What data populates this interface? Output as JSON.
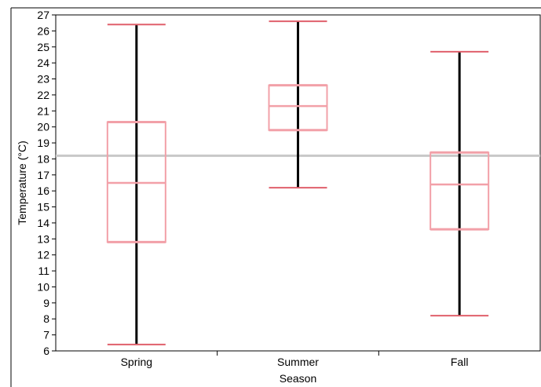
{
  "chart_data": {
    "type": "box",
    "xlabel": "Season",
    "ylabel": "Temperature (°C)",
    "ylim": [
      6,
      27
    ],
    "yticks": [
      6,
      7,
      8,
      9,
      10,
      11,
      12,
      13,
      14,
      15,
      16,
      17,
      18,
      19,
      20,
      21,
      22,
      23,
      24,
      25,
      26,
      27
    ],
    "categories": [
      "Spring",
      "Summer",
      "Fall"
    ],
    "boxes": [
      {
        "category": "Spring",
        "min": 6.4,
        "q1": 12.8,
        "median": 16.5,
        "q3": 20.3,
        "max": 26.4
      },
      {
        "category": "Summer",
        "min": 16.2,
        "q1": 19.8,
        "median": 21.3,
        "q3": 22.6,
        "max": 26.6
      },
      {
        "category": "Fall",
        "min": 8.2,
        "q1": 13.6,
        "median": 16.4,
        "q3": 18.4,
        "max": 24.7
      }
    ],
    "reference_line": 18.2,
    "grid": false,
    "colors": {
      "box": "#f2a0a8",
      "box_edge_strong": "#e0606c",
      "whisker": "#000000",
      "reference": "#c8c8c8"
    }
  }
}
